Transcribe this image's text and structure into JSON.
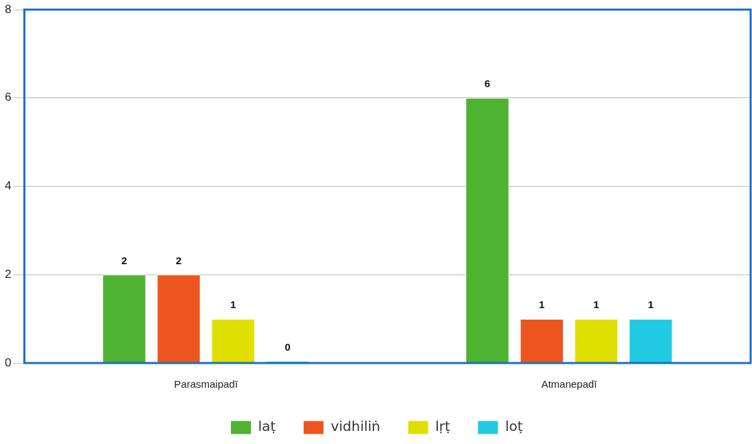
{
  "chart_data": {
    "type": "bar",
    "categories": [
      "Parasmaipadī",
      "Atmanepadī"
    ],
    "series": [
      {
        "name": "laṭ",
        "color": "#4fb332",
        "values": [
          2,
          6
        ]
      },
      {
        "name": "vidhiliṅ",
        "color": "#ec561e",
        "values": [
          2,
          1
        ]
      },
      {
        "name": "lṛṭ",
        "color": "#dfe000",
        "values": [
          1,
          1
        ]
      },
      {
        "name": "loṭ",
        "color": "#22c9e3",
        "values": [
          0,
          1
        ]
      }
    ],
    "ylim": [
      0,
      8
    ],
    "yticks": [
      0,
      2,
      4,
      6,
      8
    ],
    "grid": "y",
    "legend": "bottom",
    "data_labels": true
  }
}
